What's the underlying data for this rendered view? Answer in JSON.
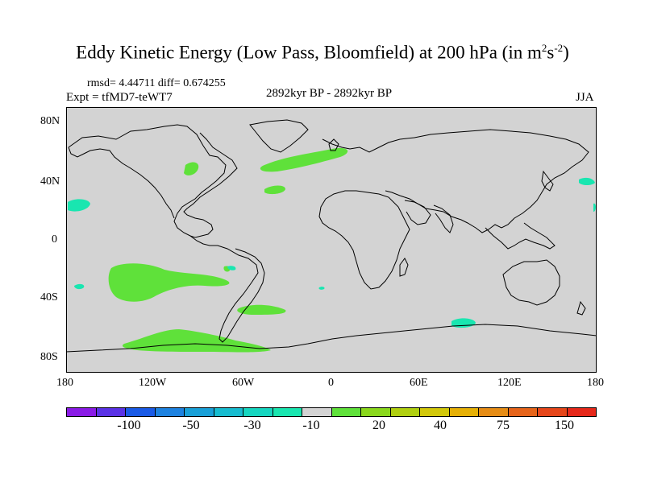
{
  "title": {
    "text": "Eddy Kinetic Energy (Low Pass, Bloomfield) at 200 hPa (in m",
    "sup1": "2",
    "mid": "s",
    "sup2": "-2",
    "end": ")"
  },
  "stats": "rmsd= 4.44711  diff= 0.674255",
  "expt": "Expt = tfMD7-teWT7",
  "period": "2892kyr BP - 2892kyr BP",
  "season": "JJA",
  "map": {
    "projection": "cylindrical equidistant",
    "lat_labels": [
      "80N",
      "40N",
      "0",
      "40S",
      "80S"
    ],
    "lon_labels": [
      "180",
      "120W",
      "60W",
      "0",
      "60E",
      "120E",
      "180"
    ],
    "ocean_color": "#d3d3d3",
    "coast_color": "#000000",
    "anomaly_regions": [
      {
        "name": "north-atlantic",
        "value": 20
      },
      {
        "name": "north-america",
        "value": 20
      },
      {
        "name": "mid-atlantic",
        "value": 20
      },
      {
        "name": "south-pacific",
        "value": 20
      },
      {
        "name": "south-atlantic",
        "value": 20
      },
      {
        "name": "southern-ocean-pacific",
        "value": 20
      },
      {
        "name": "pacific-tropics",
        "value": -10
      },
      {
        "name": "indian-ocean-south",
        "value": -10
      },
      {
        "name": "west-pacific",
        "value": -10
      }
    ]
  },
  "colorbar": {
    "colors": [
      "#8a1be6",
      "#5a32e6",
      "#1a5ae6",
      "#1e82e0",
      "#19a0d8",
      "#17bcd0",
      "#16d6c0",
      "#19e6b0",
      "#d3d3d3",
      "#5fe13a",
      "#8ad81c",
      "#b0d010",
      "#d2c80a",
      "#e6b005",
      "#e68c15",
      "#e6641a",
      "#e6461a",
      "#e6281a"
    ],
    "labels": [
      "-100",
      "-50",
      "-30",
      "-10",
      "20",
      "40",
      "75",
      "150"
    ]
  }
}
